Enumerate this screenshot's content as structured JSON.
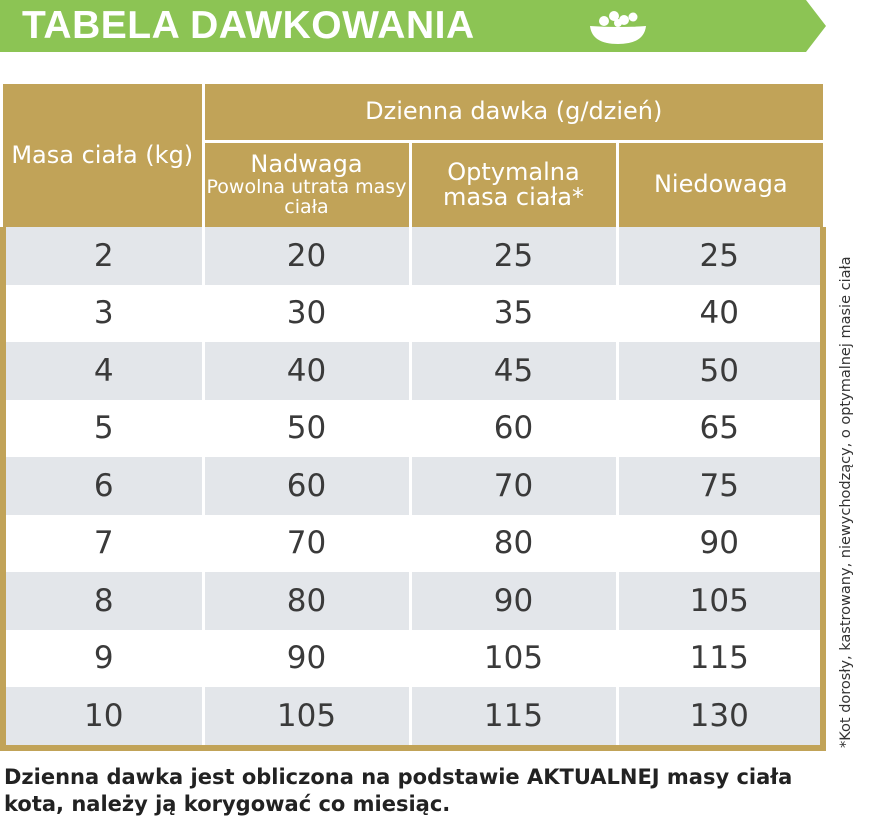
{
  "title": "TABELA DAWKOWANIA",
  "icons": {
    "bowl": "food-bowl-icon"
  },
  "colors": {
    "banner": "#8cc454",
    "header": "#c1a358",
    "row_alt": "#e3e6ea"
  },
  "table": {
    "mass_header": "Masa ciała (kg)",
    "group_header": "Dzienna dawka (g/dzień)",
    "columns": [
      {
        "line1": "Nadwaga",
        "line2": "Powolna utrata masy ciała"
      },
      {
        "line1": "Optymalna masa ciała*"
      },
      {
        "line1": "Niedowaga"
      }
    ],
    "rows": [
      [
        "2",
        "20",
        "25",
        "25"
      ],
      [
        "3",
        "30",
        "35",
        "40"
      ],
      [
        "4",
        "40",
        "45",
        "50"
      ],
      [
        "5",
        "50",
        "60",
        "65"
      ],
      [
        "6",
        "60",
        "70",
        "75"
      ],
      [
        "7",
        "70",
        "80",
        "90"
      ],
      [
        "8",
        "80",
        "90",
        "105"
      ],
      [
        "9",
        "90",
        "105",
        "115"
      ],
      [
        "10",
        "105",
        "115",
        "130"
      ]
    ]
  },
  "side_note": "*Kot dorosły, kastrowany, niewychodzący, o optymalnej masie ciała",
  "footer": "Dzienna dawka jest obliczona na podstawie AKTUALNEJ masy ciała kota, należy ją korygować co miesiąc."
}
